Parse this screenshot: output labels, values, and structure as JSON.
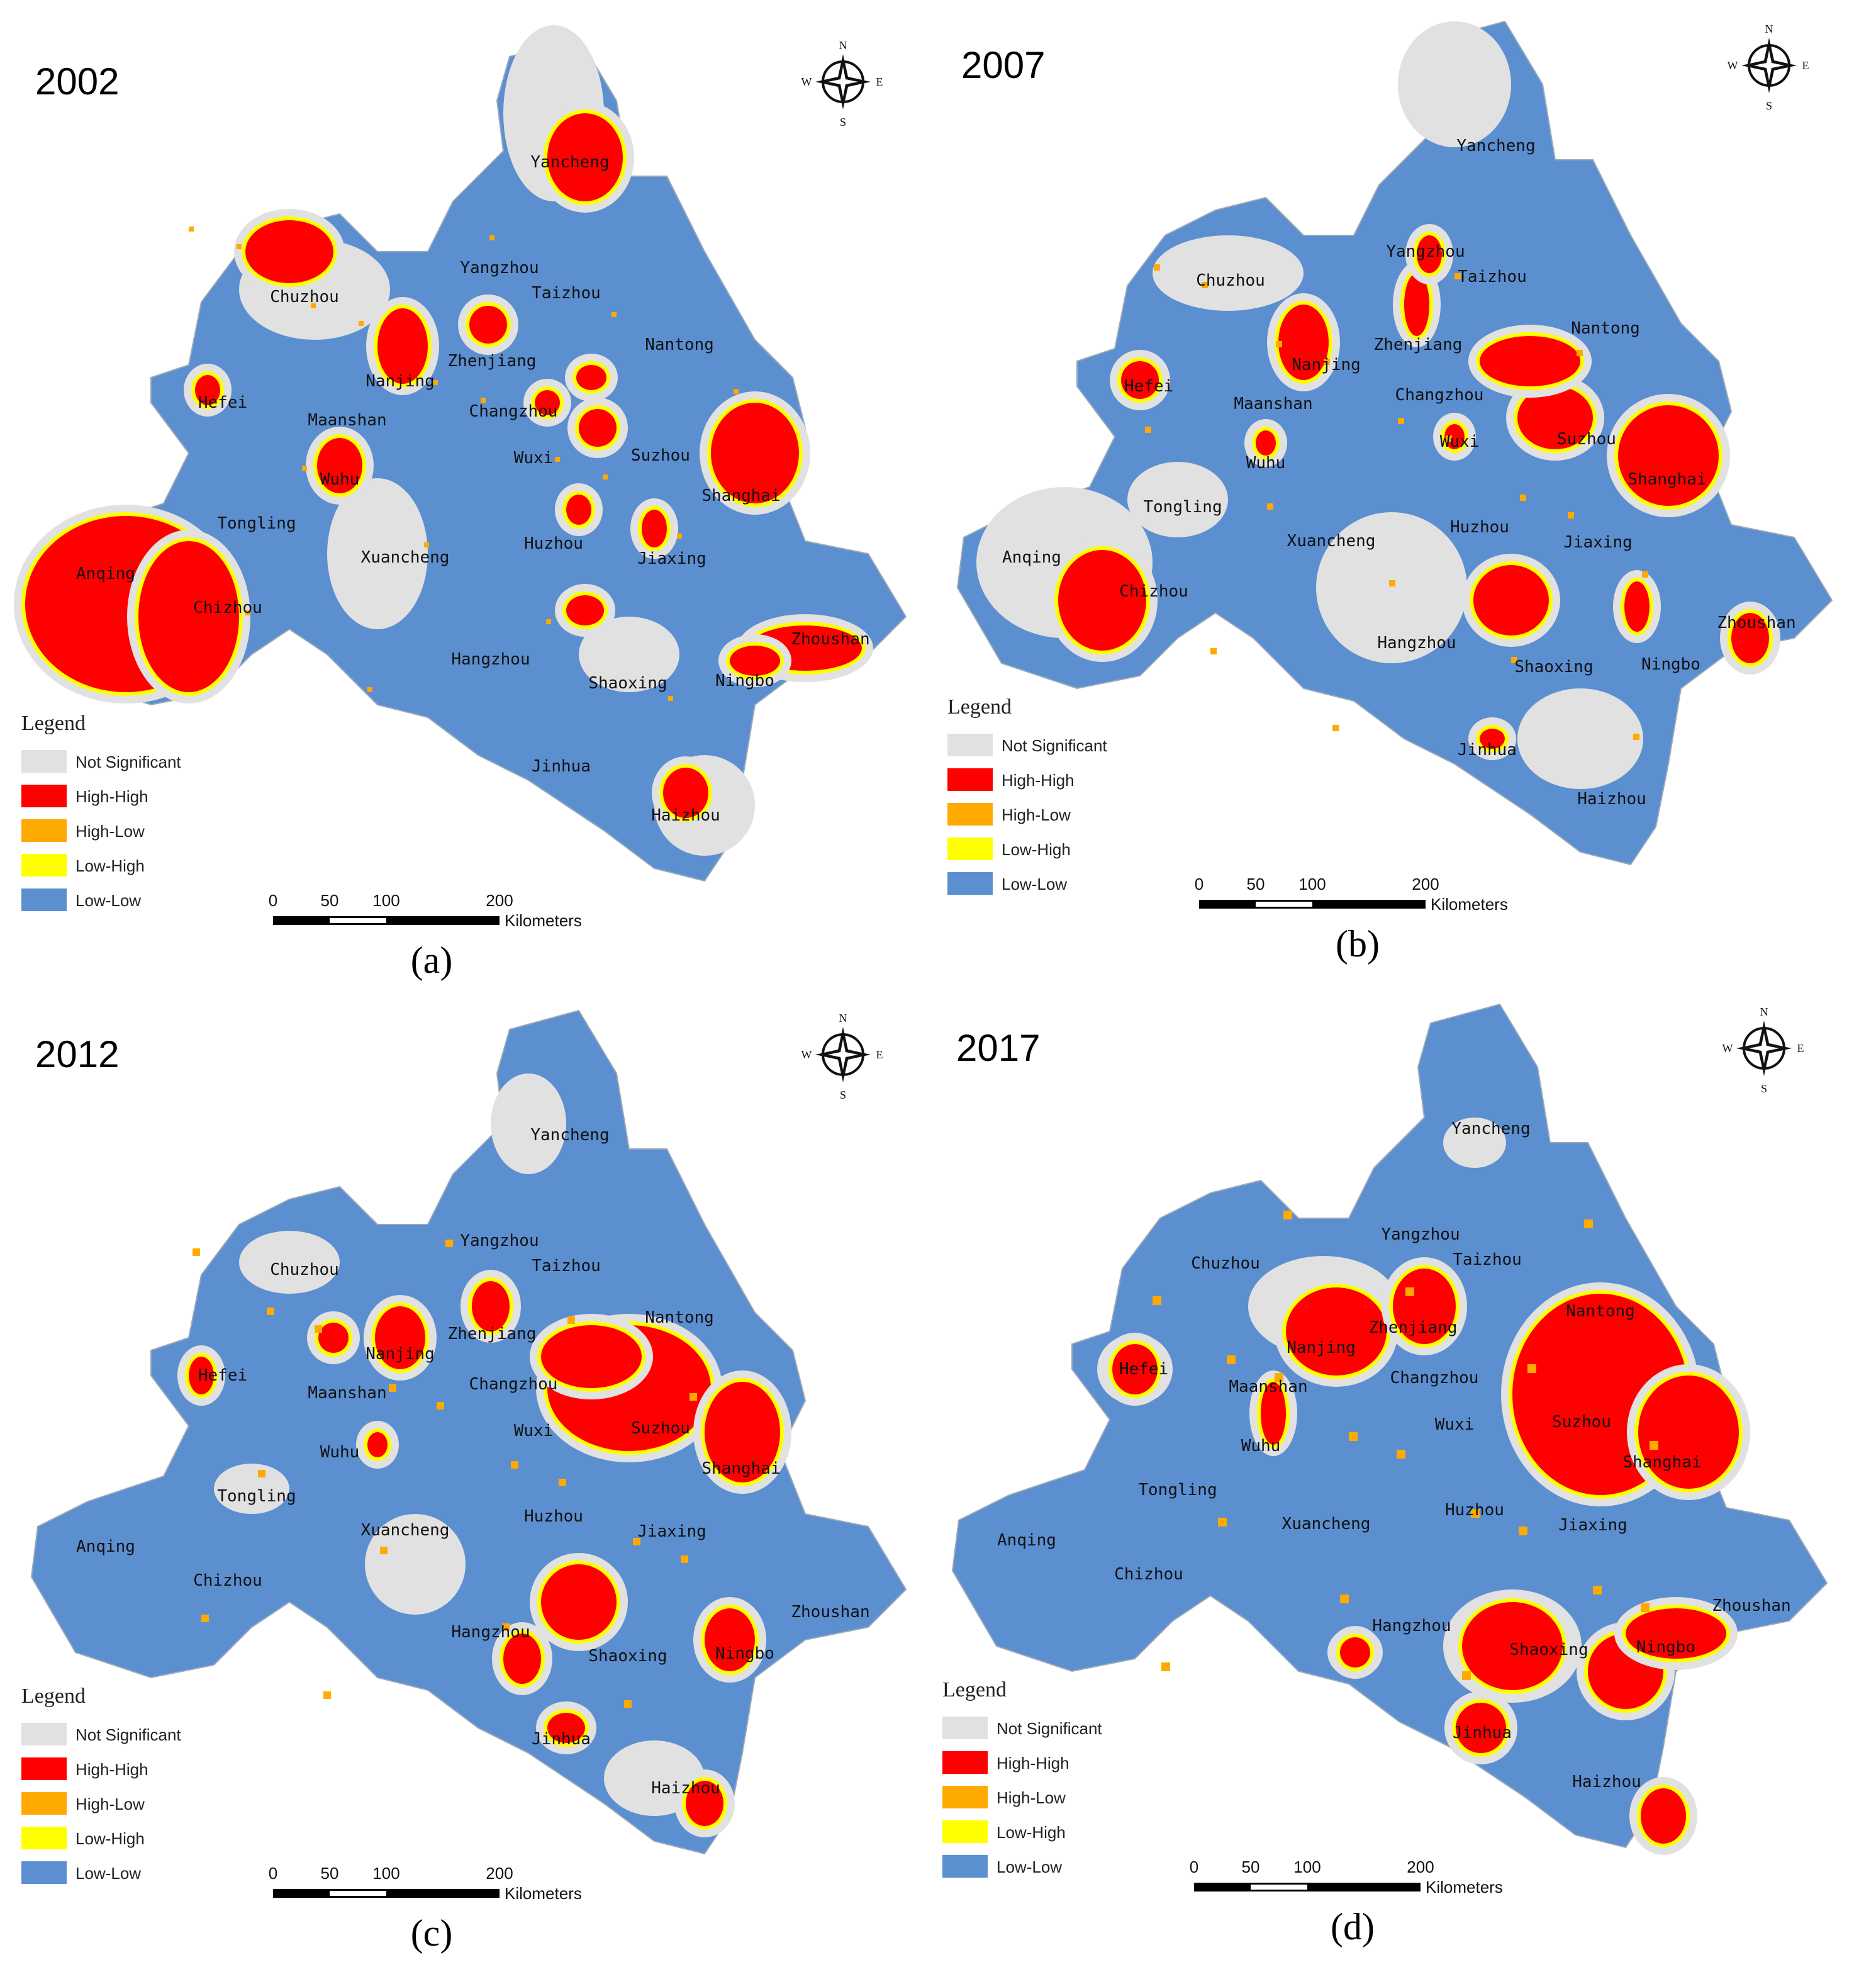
{
  "panels": [
    {
      "year": "2002",
      "caption": "(a)",
      "legend": {
        "title": "Legend",
        "items": [
          {
            "label": "Not Significant",
            "color": "#e1e1e1"
          },
          {
            "label": "High-High",
            "color": "#ff0000"
          },
          {
            "label": "High-Low",
            "color": "#ffaa00"
          },
          {
            "label": "Low-High",
            "color": "#ffff00"
          },
          {
            "label": "Low-Low",
            "color": "#5b8fd0"
          }
        ]
      },
      "scale": {
        "ticks": [
          0,
          50,
          100,
          200
        ],
        "unit": "Kilometers"
      },
      "compass": {
        "n": "N",
        "s": "S",
        "e": "E",
        "w": "W"
      },
      "cities": [
        "Yancheng",
        "Yangzhou",
        "Taizhou",
        "Chuzhou",
        "Nantong",
        "Zhenjiang",
        "Nanjing",
        "Hefei",
        "Changzhou",
        "Maanshan",
        "Wuxi",
        "Suzhou",
        "Wuhu",
        "Shanghai",
        "Tongling",
        "Huzhou",
        "Xuancheng",
        "Jiaxing",
        "Anqing",
        "Chizhou",
        "Zhoushan",
        "Hangzhou",
        "Shaoxing",
        "Ningbo",
        "Jinhua",
        "Haizhou"
      ]
    },
    {
      "year": "2007",
      "caption": "(b)",
      "legend": {
        "title": "Legend",
        "items": [
          {
            "label": "Not Significant",
            "color": "#e1e1e1"
          },
          {
            "label": "High-High",
            "color": "#ff0000"
          },
          {
            "label": "High-Low",
            "color": "#ffaa00"
          },
          {
            "label": "Low-High",
            "color": "#ffff00"
          },
          {
            "label": "Low-Low",
            "color": "#5b8fd0"
          }
        ]
      },
      "scale": {
        "ticks": [
          0,
          50,
          100,
          200
        ],
        "unit": "Kilometers"
      },
      "compass": {
        "n": "N",
        "s": "S",
        "e": "E",
        "w": "W"
      },
      "cities": [
        "Yancheng",
        "Yangzhou",
        "Taizhou",
        "Chuzhou",
        "Nantong",
        "Zhenjiang",
        "Nanjing",
        "Hefei",
        "Changzhou",
        "Maanshan",
        "Wuxi",
        "Suzhou",
        "Wuhu",
        "Shanghai",
        "Tongling",
        "Huzhou",
        "Xuancheng",
        "Jiaxing",
        "Anqing",
        "Chizhou",
        "Zhoushan",
        "Hangzhou",
        "Shaoxing",
        "Ningbo",
        "Jinhua",
        "Haizhou"
      ]
    },
    {
      "year": "2012",
      "caption": "(c)",
      "legend": {
        "title": "Legend",
        "items": [
          {
            "label": "Not Significant",
            "color": "#e1e1e1"
          },
          {
            "label": "High-High",
            "color": "#ff0000"
          },
          {
            "label": "High-Low",
            "color": "#ffaa00"
          },
          {
            "label": "Low-High",
            "color": "#ffff00"
          },
          {
            "label": "Low-Low",
            "color": "#5b8fd0"
          }
        ]
      },
      "scale": {
        "ticks": [
          0,
          50,
          100,
          200
        ],
        "unit": "Kilometers"
      },
      "compass": {
        "n": "N",
        "s": "S",
        "e": "E",
        "w": "W"
      },
      "cities": [
        "Yancheng",
        "Yangzhou",
        "Taizhou",
        "Chuzhou",
        "Nantong",
        "Zhenjiang",
        "Nanjing",
        "Hefei",
        "Changzhou",
        "Maanshan",
        "Wuxi",
        "Suzhou",
        "Wuhu",
        "Shanghai",
        "Tongling",
        "Huzhou",
        "Xuancheng",
        "Jiaxing",
        "Anqing",
        "Chizhou",
        "Zhoushan",
        "Hangzhou",
        "Shaoxing",
        "Ningbo",
        "Jinhua",
        "Haizhou"
      ]
    },
    {
      "year": "2017",
      "caption": "(d)",
      "legend": {
        "title": "Legend",
        "items": [
          {
            "label": "Not Significant",
            "color": "#e1e1e1"
          },
          {
            "label": "High-High",
            "color": "#ff0000"
          },
          {
            "label": "High-Low",
            "color": "#ffaa00"
          },
          {
            "label": "Low-High",
            "color": "#ffff00"
          },
          {
            "label": "Low-Low",
            "color": "#5b8fd0"
          }
        ]
      },
      "scale": {
        "ticks": [
          0,
          50,
          100,
          200
        ],
        "unit": "Kilometers"
      },
      "compass": {
        "n": "N",
        "s": "S",
        "e": "E",
        "w": "W"
      },
      "cities": [
        "Yancheng",
        "Yangzhou",
        "Taizhou",
        "Chuzhou",
        "Nantong",
        "Zhenjiang",
        "Nanjing",
        "Hefei",
        "Changzhou",
        "Maanshan",
        "Wuxi",
        "Suzhou",
        "Wuhu",
        "Shanghai",
        "Tongling",
        "Huzhou",
        "Xuancheng",
        "Jiaxing",
        "Anqing",
        "Chizhou",
        "Zhoushan",
        "Hangzhou",
        "Shaoxing",
        "Ningbo",
        "Jinhua",
        "Haizhou"
      ]
    }
  ]
}
